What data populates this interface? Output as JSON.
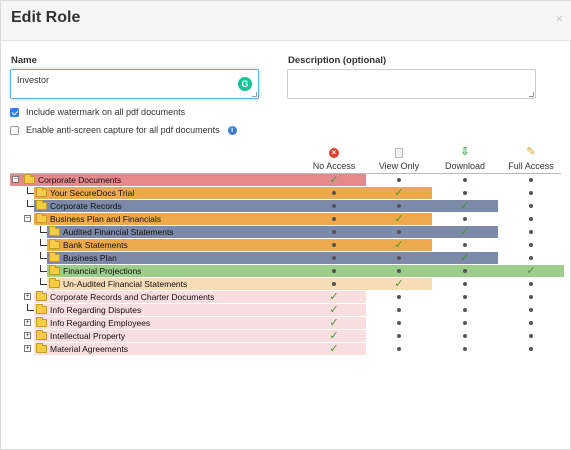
{
  "dialog": {
    "title": "Edit Role",
    "close_glyph": "×"
  },
  "form": {
    "name_label": "Name",
    "name_value": "Investor",
    "description_label": "Description (optional)",
    "description_value": "",
    "grammarly_glyph": "G"
  },
  "options": [
    {
      "label": "Include watermark on all pdf documents",
      "checked": true,
      "info": false
    },
    {
      "label": "Enable anti-screen capture for all pdf documents",
      "checked": false,
      "info": true
    }
  ],
  "info_glyph": "i",
  "columns": [
    {
      "key": "no_access",
      "label": "No Access",
      "icon": "no-access-icon"
    },
    {
      "key": "view_only",
      "label": "View Only",
      "icon": "view-only-icon"
    },
    {
      "key": "download",
      "label": "Download",
      "icon": "download-icon"
    },
    {
      "key": "full_access",
      "label": "Full Access",
      "icon": "full-access-icon"
    }
  ],
  "column_glyphs": {
    "no_access": "×",
    "view_only": "",
    "download": "⇩",
    "full_access": "✎"
  },
  "colors": {
    "no_access": "#e58a8c",
    "no_access_light": "#f8dedf",
    "view_only": "#eeaa4a",
    "view_only_light": "#f8dcb8",
    "download": "#7c89a8",
    "full_access": "#9ccd8a"
  },
  "tree": [
    {
      "label": "Corporate Documents",
      "level": 0,
      "toggle": "minus",
      "selected": 0,
      "light": false
    },
    {
      "label": "Your SecureDocs Trial",
      "level": 1,
      "toggle": null,
      "selected": 1,
      "light": false
    },
    {
      "label": "Corporate Records",
      "level": 1,
      "toggle": null,
      "selected": 2,
      "light": false
    },
    {
      "label": "Business Plan and Financials",
      "level": 1,
      "toggle": "minus",
      "selected": 1,
      "light": false
    },
    {
      "label": "Audited Financial Statements",
      "level": 2,
      "toggle": null,
      "selected": 2,
      "light": false
    },
    {
      "label": "Bank Statements",
      "level": 2,
      "toggle": null,
      "selected": 1,
      "light": false
    },
    {
      "label": "Business Plan",
      "level": 2,
      "toggle": null,
      "selected": 2,
      "light": false
    },
    {
      "label": "Financial Projections",
      "level": 2,
      "toggle": null,
      "selected": 3,
      "light": false
    },
    {
      "label": "Un-Audited Financial Statements",
      "level": 2,
      "toggle": null,
      "selected": 1,
      "light": true
    },
    {
      "label": "Corporate Records and Charter Documents",
      "level": 1,
      "toggle": "plus",
      "selected": 0,
      "light": true
    },
    {
      "label": "Info Regarding Disputes",
      "level": 1,
      "toggle": null,
      "selected": 0,
      "light": true
    },
    {
      "label": "Info Regarding Employees",
      "level": 1,
      "toggle": "plus",
      "selected": 0,
      "light": true
    },
    {
      "label": "Intellectual Property",
      "level": 1,
      "toggle": "plus",
      "selected": 0,
      "light": true
    },
    {
      "label": "Material Agreements",
      "level": 1,
      "toggle": "plus",
      "selected": 0,
      "light": true
    }
  ],
  "glyphs": {
    "check": "✓",
    "minus": "−",
    "plus": "+"
  }
}
